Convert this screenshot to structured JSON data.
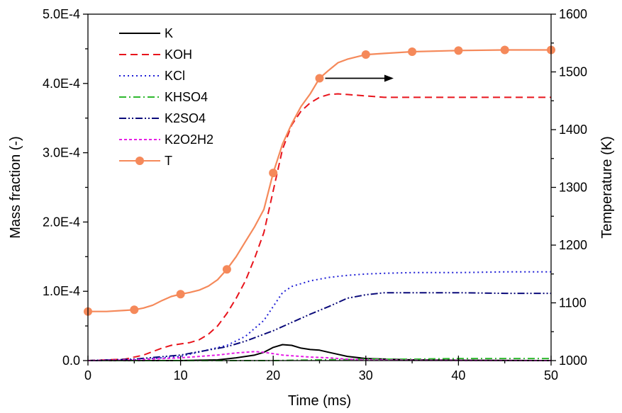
{
  "chart_data": {
    "type": "line",
    "xlabel": "Time (ms)",
    "ylabel": "Mass fraction (-)",
    "y2label": "Temperature (K)",
    "xlim": [
      0,
      50
    ],
    "ylim": [
      0,
      0.0005
    ],
    "y2lim": [
      1000,
      1600
    ],
    "xticks": [
      0,
      10,
      20,
      30,
      40,
      50
    ],
    "xtick_labels": [
      "0",
      "10",
      "20",
      "30",
      "40",
      "50"
    ],
    "yticks": [
      0,
      0.0001,
      0.0002,
      0.0003,
      0.0004,
      0.0005
    ],
    "ytick_labels": [
      "0.0",
      "1.0E-4",
      "2.0E-4",
      "3.0E-4",
      "4.0E-4",
      "5.0E-4"
    ],
    "y2ticks": [
      1000,
      1100,
      1200,
      1300,
      1400,
      1500,
      1600
    ],
    "y2tick_labels": [
      "1000",
      "1100",
      "1200",
      "1300",
      "1400",
      "1500",
      "1600"
    ],
    "grid": false,
    "legend_position": "top-left",
    "series": [
      {
        "name": "K",
        "axis": "left",
        "color": "#000000",
        "dash": "solid",
        "x": [
          0,
          10,
          14,
          16,
          18,
          19,
          20,
          21,
          22,
          23,
          24,
          25,
          26,
          27,
          28,
          30,
          35,
          40,
          50
        ],
        "y": [
          0,
          0,
          1e-06,
          4e-06,
          8e-06,
          1.2e-05,
          1.9e-05,
          2.3e-05,
          2.2e-05,
          1.8e-05,
          1.6e-05,
          1.5e-05,
          1.2e-05,
          9e-06,
          6e-06,
          3e-06,
          1e-06,
          5e-07,
          0
        ]
      },
      {
        "name": "KOH",
        "axis": "left",
        "color": "#e8141c",
        "dash": "dashed",
        "x": [
          0,
          4,
          6,
          8,
          9,
          10,
          11,
          12,
          13,
          14,
          15,
          16,
          17,
          18,
          19,
          20,
          21,
          22,
          23,
          24,
          25,
          26,
          27,
          28,
          30,
          32,
          35,
          40,
          45,
          50
        ],
        "y": [
          0,
          2e-06,
          8e-06,
          1.8e-05,
          2.2e-05,
          2.4e-05,
          2.6e-05,
          3e-05,
          3.8e-05,
          5e-05,
          6.8e-05,
          9e-05,
          0.000115,
          0.000148,
          0.000185,
          0.000245,
          0.000305,
          0.00034,
          0.00036,
          0.000372,
          0.00038,
          0.000384,
          0.000385,
          0.000384,
          0.000382,
          0.00038,
          0.00038,
          0.00038,
          0.00038,
          0.00038
        ]
      },
      {
        "name": "KCl",
        "axis": "left",
        "color": "#1f1fd6",
        "dash": "dotted",
        "x": [
          0,
          5,
          10,
          15,
          17,
          19,
          20,
          21,
          22,
          24,
          26,
          28,
          30,
          32,
          35,
          40,
          45,
          50
        ],
        "y": [
          0,
          1e-06,
          6e-06,
          2.2e-05,
          3.5e-05,
          5.8e-05,
          7.8e-05,
          9.8e-05,
          0.000107,
          0.000115,
          0.00012,
          0.000123,
          0.000125,
          0.000126,
          0.000127,
          0.000127,
          0.000128,
          0.000128
        ]
      },
      {
        "name": "KHSO4",
        "axis": "left",
        "color": "#2eb82e",
        "dash": "dashdot",
        "x": [
          0,
          20,
          25,
          30,
          35,
          40,
          45,
          50
        ],
        "y": [
          0,
          0,
          1e-06,
          2e-06,
          2e-06,
          3e-06,
          3e-06,
          3e-06
        ]
      },
      {
        "name": "K2SO4",
        "axis": "left",
        "color": "#0a0a7a",
        "dash": "dashdotdot",
        "x": [
          0,
          5,
          10,
          15,
          17,
          19,
          20,
          22,
          24,
          26,
          28,
          30,
          32,
          35,
          40,
          45,
          50
        ],
        "y": [
          0,
          2e-06,
          8e-06,
          2e-05,
          2.8e-05,
          3.8e-05,
          4.3e-05,
          5.5e-05,
          6.7e-05,
          7.8e-05,
          9e-05,
          9.5e-05,
          9.8e-05,
          9.8e-05,
          9.8e-05,
          9.7e-05,
          9.7e-05
        ]
      },
      {
        "name": "K2O2H2",
        "axis": "left",
        "color": "#e61ee6",
        "dash": "shortdash",
        "x": [
          0,
          5,
          10,
          14,
          16,
          18,
          19,
          20,
          21,
          22,
          24,
          26,
          28,
          30,
          35,
          40,
          50
        ],
        "y": [
          0,
          1e-06,
          4e-06,
          8e-06,
          1.1e-05,
          1.3e-05,
          1.2e-05,
          1e-05,
          8e-06,
          7e-06,
          5e-06,
          4e-06,
          2e-06,
          1e-06,
          5e-07,
          2e-07,
          0
        ]
      },
      {
        "name": "T",
        "axis": "right",
        "color": "#f5895a",
        "dash": "solid",
        "marker": "circle",
        "x": [
          0,
          2,
          4,
          5,
          6,
          7,
          8,
          9,
          10,
          11,
          12,
          13,
          14,
          15,
          16,
          17,
          18,
          19,
          20,
          21,
          22,
          23,
          24,
          25,
          26,
          27,
          28,
          30,
          32,
          35,
          40,
          45,
          50
        ],
        "y": [
          1085,
          1085,
          1087,
          1088,
          1091,
          1096,
          1104,
          1111,
          1115,
          1118,
          1122,
          1129,
          1140,
          1158,
          1180,
          1206,
          1232,
          1262,
          1325,
          1375,
          1410,
          1440,
          1462,
          1489,
          1503,
          1516,
          1522,
          1530,
          1532,
          1535,
          1537,
          1538,
          1538
        ],
        "marker_x": [
          0,
          5,
          10,
          15,
          20,
          25,
          30,
          35,
          40,
          45,
          50
        ]
      }
    ],
    "annotation_arrow": {
      "from": [
        25,
        1489
      ],
      "to": [
        33,
        1489
      ],
      "axis": "right"
    }
  }
}
